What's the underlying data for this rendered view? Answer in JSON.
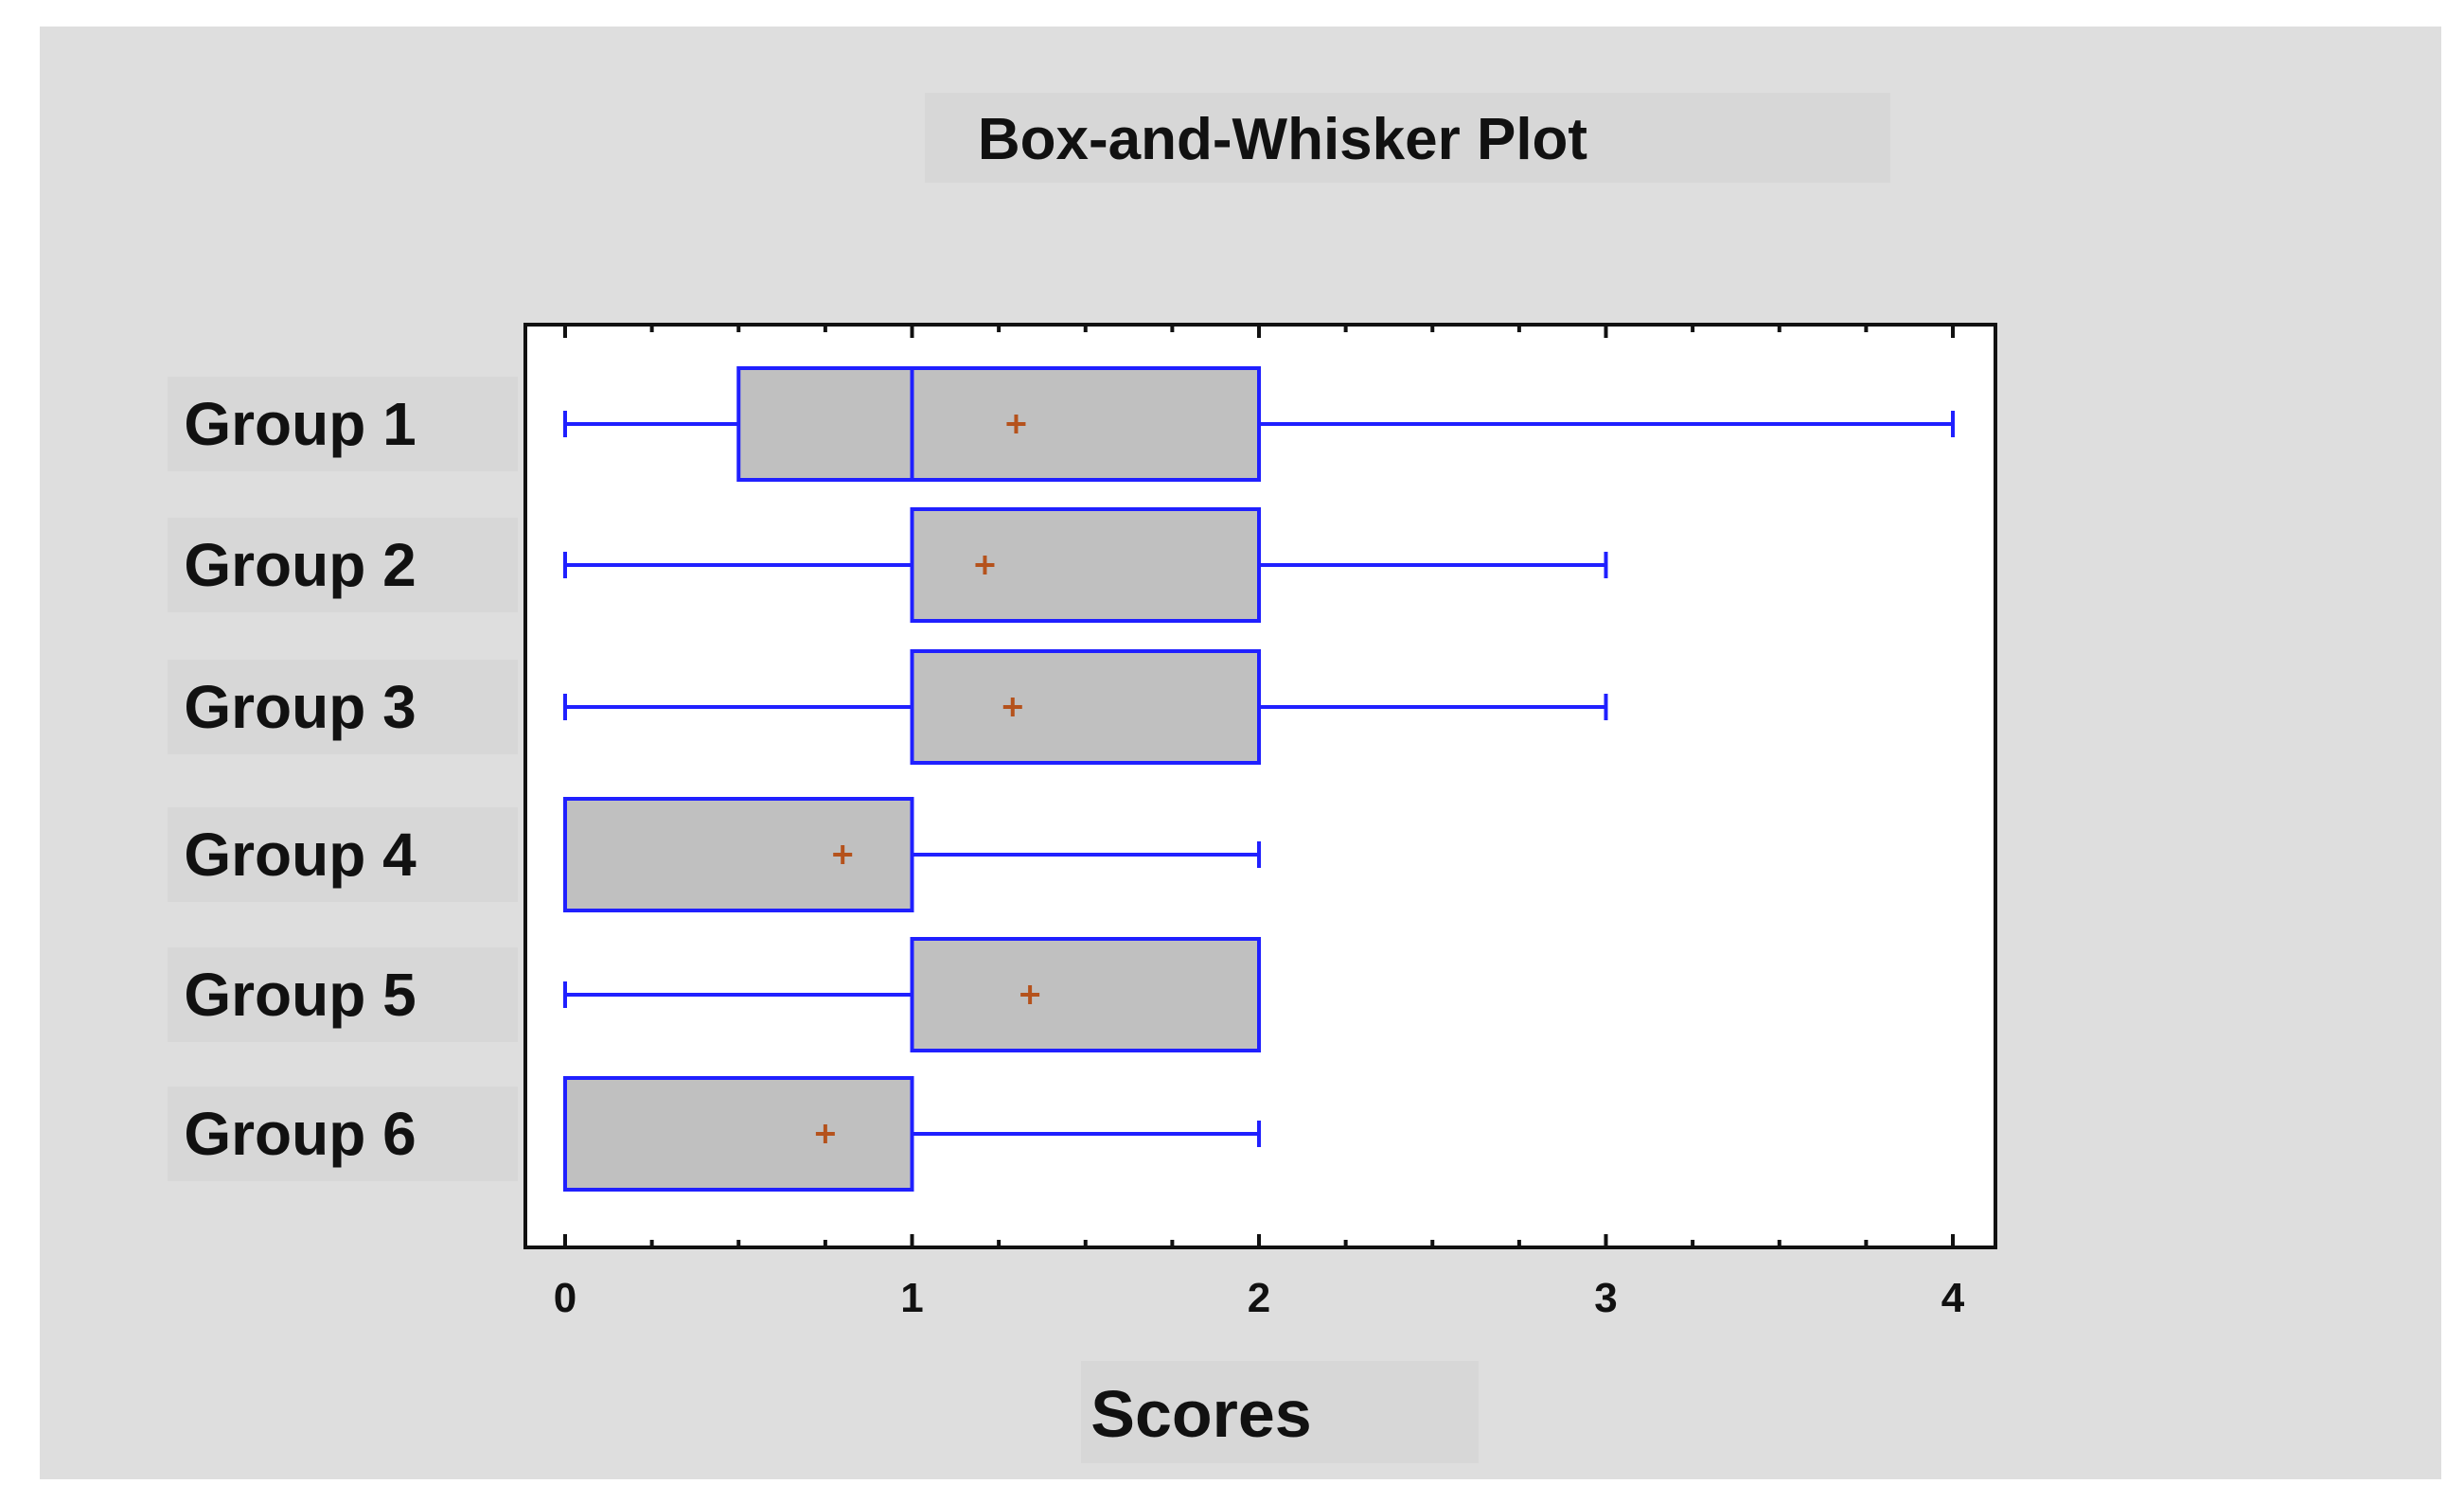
{
  "chart_data": {
    "type": "box",
    "orientation": "horizontal",
    "title": "Box-and-Whisker Plot",
    "xlabel": "Scores",
    "ylabel": "",
    "xlim": [
      0,
      4
    ],
    "x_ticks": [
      0,
      1,
      2,
      3,
      4
    ],
    "grid": false,
    "categories": [
      "Group 1",
      "Group 2",
      "Group 3",
      "Group 4",
      "Group 5",
      "Group 6"
    ],
    "boxes": [
      {
        "category": "Group 1",
        "min": 0,
        "q1": 0.5,
        "median": 1,
        "q3": 2,
        "max": 4,
        "mean": 1.3
      },
      {
        "category": "Group 2",
        "min": 0,
        "q1": 1,
        "median": 1,
        "q3": 2,
        "max": 3,
        "mean": 1.21
      },
      {
        "category": "Group 3",
        "min": 0,
        "q1": 1,
        "median": 1,
        "q3": 2,
        "max": 3,
        "mean": 1.29
      },
      {
        "category": "Group 4",
        "min": 0,
        "q1": 0,
        "median": 0,
        "q3": 1,
        "max": 2,
        "mean": 0.8
      },
      {
        "category": "Group 5",
        "min": 0,
        "q1": 1,
        "median": 1,
        "q3": 2,
        "max": 2,
        "mean": 1.34
      },
      {
        "category": "Group 6",
        "min": 0,
        "q1": 0,
        "median": 0,
        "q3": 1,
        "max": 2,
        "mean": 0.75
      }
    ],
    "colors": {
      "panel_background": "#dedede",
      "plot_background": "#ffffff",
      "box_fill": "#c0c0c0",
      "box_stroke": "#2020ff",
      "whisker": "#2020ff",
      "mean_marker": "#b5521c",
      "axis": "#111111",
      "text": "#111111"
    },
    "mean_marker": "plus"
  }
}
